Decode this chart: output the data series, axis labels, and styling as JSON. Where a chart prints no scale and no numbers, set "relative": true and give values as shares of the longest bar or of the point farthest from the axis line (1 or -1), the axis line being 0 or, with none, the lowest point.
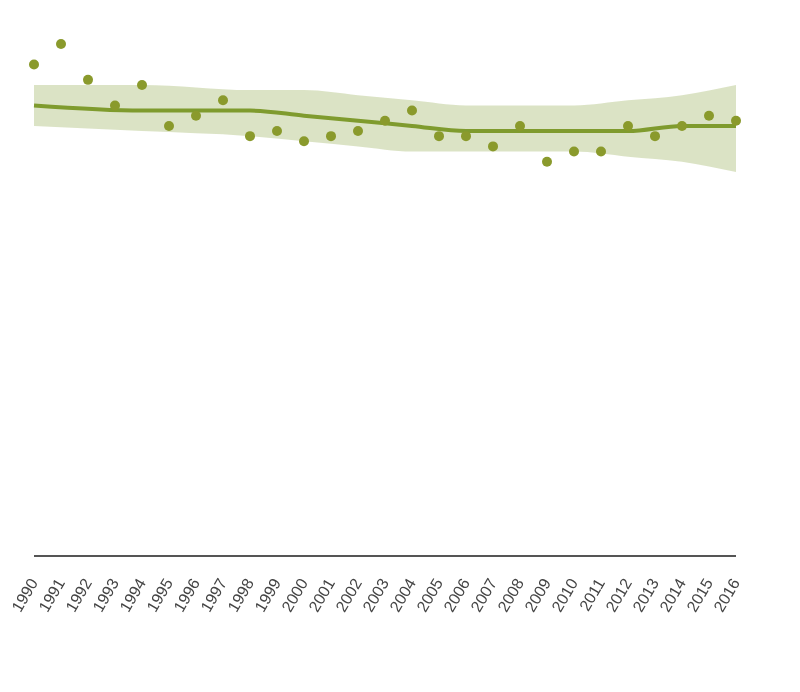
{
  "chart_data": {
    "type": "scatter",
    "relative": true,
    "x": [
      1990,
      1991,
      1992,
      1993,
      1994,
      1995,
      1996,
      1997,
      1998,
      1999,
      2000,
      2001,
      2002,
      2003,
      2004,
      2005,
      2006,
      2007,
      2008,
      2009,
      2010,
      2011,
      2012,
      2013,
      2014,
      2015,
      2016
    ],
    "xlim": [
      1990,
      2016
    ],
    "xticks": [
      1990,
      1991,
      1992,
      1993,
      1994,
      1995,
      1996,
      1997,
      1998,
      1999,
      2000,
      2001,
      2002,
      2003,
      2004,
      2005,
      2006,
      2007,
      2008,
      2009,
      2010,
      2011,
      2012,
      2013,
      2014,
      2015,
      2016
    ],
    "grid": false,
    "legend": false,
    "series": [
      {
        "type": "scatter",
        "color": "#8a9a2c",
        "marker": "circle",
        "values": [
          0.96,
          1,
          0.93,
          0.88,
          0.92,
          0.84,
          0.86,
          0.89,
          0.82,
          0.83,
          0.81,
          0.82,
          0.83,
          0.85,
          0.87,
          0.82,
          0.82,
          0.8,
          0.84,
          0.77,
          0.79,
          0.79,
          0.84,
          0.82,
          0.84,
          0.86,
          0.85
        ]
      },
      {
        "type": "line",
        "color": "#7f9b2e",
        "x": [
          1990,
          1994,
          1998,
          2000,
          2002,
          2004,
          2006,
          2008,
          2010,
          2012,
          2014,
          2016
        ],
        "values": [
          0.88,
          0.87,
          0.87,
          0.86,
          0.85,
          0.84,
          0.83,
          0.83,
          0.83,
          0.83,
          0.84,
          0.84
        ],
        "lower": [
          0.84,
          0.83,
          0.82,
          0.81,
          0.8,
          0.79,
          0.79,
          0.79,
          0.79,
          0.78,
          0.77,
          0.75
        ],
        "upper": [
          0.92,
          0.92,
          0.91,
          0.91,
          0.9,
          0.89,
          0.88,
          0.88,
          0.88,
          0.89,
          0.9,
          0.92
        ]
      }
    ]
  }
}
